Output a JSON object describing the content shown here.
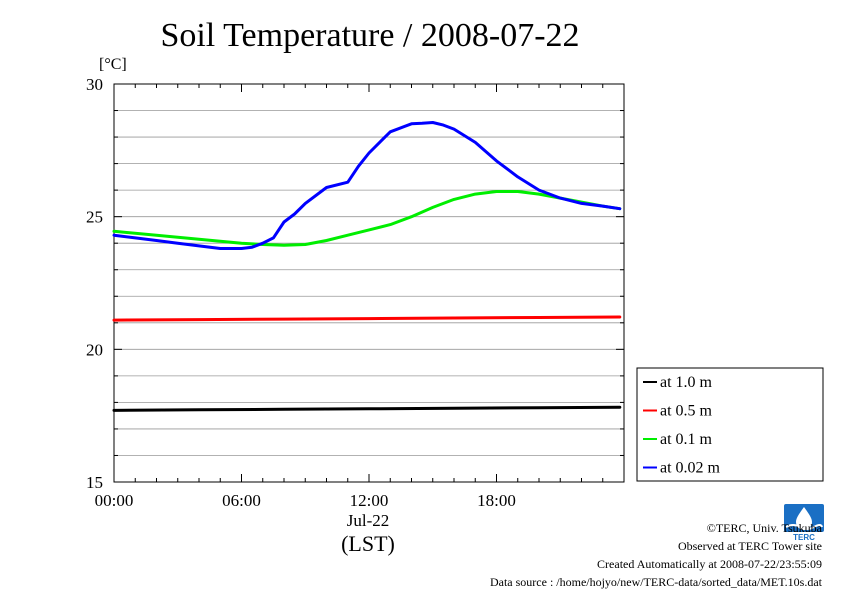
{
  "chart_data": {
    "type": "line",
    "title": "Soil Temperature / 2008-07-22",
    "ylabel": "[°C]",
    "xlabel_date": "Jul-22",
    "xlabel_unit": "(LST)",
    "xlim": [
      0,
      24
    ],
    "ylim": [
      15,
      30
    ],
    "x_ticks": [
      {
        "value": 0,
        "label": "00:00"
      },
      {
        "value": 6,
        "label": "06:00"
      },
      {
        "value": 12,
        "label": "12:00"
      },
      {
        "value": 18,
        "label": "18:00"
      }
    ],
    "y_ticks": [
      {
        "value": 15,
        "label": "15"
      },
      {
        "value": 20,
        "label": "20"
      },
      {
        "value": 25,
        "label": "25"
      },
      {
        "value": 30,
        "label": "30"
      }
    ],
    "grid": true,
    "legend_position": "right",
    "series": [
      {
        "name": "at 1.0 m",
        "color": "#000000",
        "x": [
          0,
          4,
          8,
          12,
          16,
          20,
          23.8
        ],
        "y": [
          17.7,
          17.72,
          17.74,
          17.76,
          17.78,
          17.8,
          17.82
        ]
      },
      {
        "name": "at 0.5 m",
        "color": "#ff0000",
        "x": [
          0,
          4,
          8,
          12,
          16,
          20,
          23.8
        ],
        "y": [
          21.1,
          21.12,
          21.14,
          21.16,
          21.18,
          21.2,
          21.22
        ]
      },
      {
        "name": "at 0.1 m",
        "color": "#00ee00",
        "x": [
          0,
          2,
          4,
          6,
          7,
          8,
          9,
          10,
          11,
          12,
          13,
          14,
          15,
          16,
          17,
          18,
          19,
          20,
          21,
          22,
          23,
          23.8
        ],
        "y": [
          24.45,
          24.3,
          24.15,
          24.0,
          23.95,
          23.92,
          23.95,
          24.1,
          24.3,
          24.5,
          24.7,
          25.0,
          25.35,
          25.65,
          25.85,
          25.95,
          25.95,
          25.85,
          25.7,
          25.55,
          25.4,
          25.3
        ]
      },
      {
        "name": "at 0.02 m",
        "color": "#0000ff",
        "x": [
          0,
          1,
          2,
          3,
          4,
          5,
          6,
          6.5,
          7,
          7.5,
          8,
          8.5,
          9,
          10,
          11,
          11.5,
          12,
          12.5,
          13,
          14,
          14.5,
          15,
          15.5,
          16,
          17,
          18,
          19,
          20,
          21,
          22,
          23,
          23.8
        ],
        "y": [
          24.3,
          24.2,
          24.1,
          24.0,
          23.9,
          23.8,
          23.8,
          23.85,
          24.0,
          24.2,
          24.8,
          25.1,
          25.5,
          26.1,
          26.3,
          26.9,
          27.4,
          27.8,
          28.2,
          28.5,
          28.52,
          28.55,
          28.45,
          28.3,
          27.8,
          27.1,
          26.5,
          26.0,
          25.7,
          25.5,
          25.4,
          25.3
        ]
      }
    ]
  },
  "footer": {
    "copyright": "©TERC, Univ. Tsukuba",
    "site": "Observed at TERC Tower site",
    "created": "Created Automatically at 2008-07-22/23:55:09",
    "source": "Data source : /home/hojyo/new/TERC-data/sorted_data/MET.10s.dat"
  },
  "logo": {
    "text": "TERC",
    "color": "#1a6fc4"
  }
}
